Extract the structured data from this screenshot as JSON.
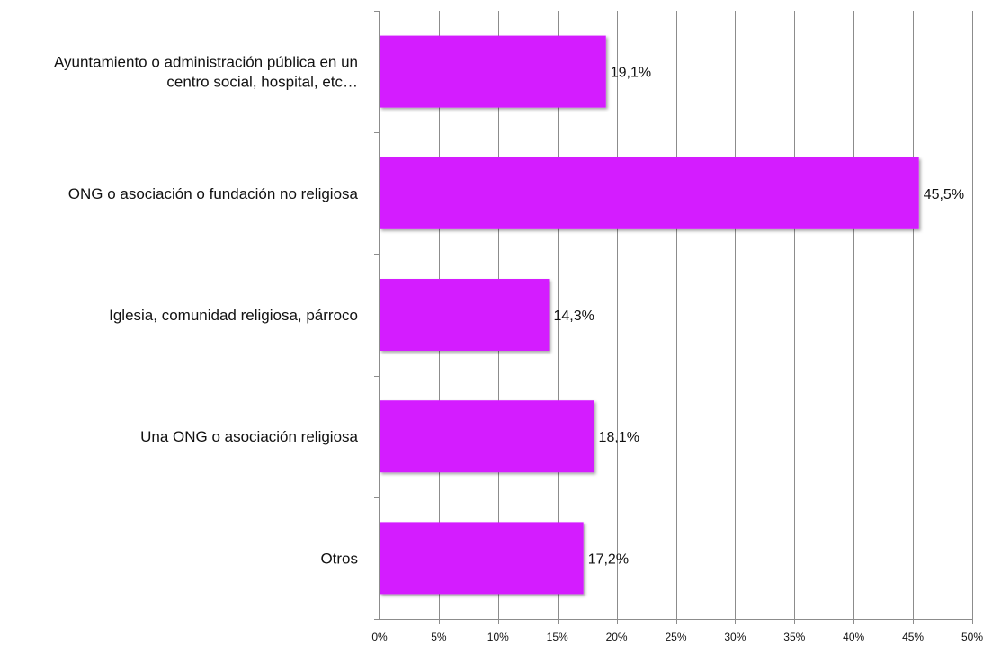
{
  "chart_data": {
    "type": "bar",
    "orientation": "horizontal",
    "categories": [
      [
        "Ayuntamiento o administración pública en un",
        "centro social, hospital, etc…"
      ],
      [
        "ONG o asociación o fundación no religiosa"
      ],
      [
        "Iglesia, comunidad religiosa, párroco"
      ],
      [
        "Una ONG o asociación religiosa"
      ],
      [
        "Otros"
      ]
    ],
    "values": [
      19.1,
      45.5,
      14.3,
      18.1,
      17.2
    ],
    "value_labels": [
      "19,1%",
      "45,5%",
      "14,3%",
      "18,1%",
      "17,2%"
    ],
    "xlim": [
      0,
      50
    ],
    "x_ticks": [
      0,
      5,
      10,
      15,
      20,
      25,
      30,
      35,
      40,
      45,
      50
    ],
    "x_tick_labels": [
      "0%",
      "5%",
      "10%",
      "15%",
      "20%",
      "25%",
      "30%",
      "35%",
      "40%",
      "45%",
      "50%"
    ],
    "grid": true,
    "legend": "none",
    "bar_color": "#d41bff",
    "grid_color": "#8c8c8c"
  }
}
